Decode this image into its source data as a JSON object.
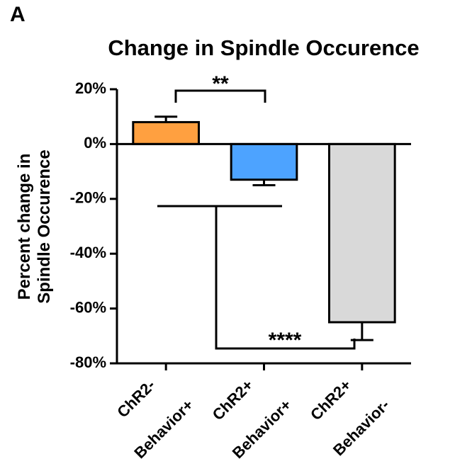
{
  "panel_label": "A",
  "chart_data": {
    "type": "bar",
    "title": "Change in Spindle Occurence",
    "ylabel": [
      "Percent change in",
      "Spindle Occurence"
    ],
    "categories": [
      [
        "ChR2-",
        "Behavior+"
      ],
      [
        "ChR2+",
        "Behavior+"
      ],
      [
        "ChR2+",
        "Behavior-"
      ]
    ],
    "values": [
      8,
      -13,
      -65
    ],
    "errors": [
      2,
      2,
      6.5
    ],
    "colors": [
      "#FFA040",
      "#4DA3FF",
      "#D9D9D9"
    ],
    "ylim": [
      -80,
      20
    ],
    "yticks": [
      {
        "value": 20,
        "label": "20%"
      },
      {
        "value": 0,
        "label": "0%"
      },
      {
        "value": -20,
        "label": "-20%"
      },
      {
        "value": -40,
        "label": "-40%"
      },
      {
        "value": -60,
        "label": "-60%"
      },
      {
        "value": -80,
        "label": "-80%"
      }
    ],
    "annotations": [
      {
        "text": "**"
      },
      {
        "text": "****"
      }
    ]
  }
}
